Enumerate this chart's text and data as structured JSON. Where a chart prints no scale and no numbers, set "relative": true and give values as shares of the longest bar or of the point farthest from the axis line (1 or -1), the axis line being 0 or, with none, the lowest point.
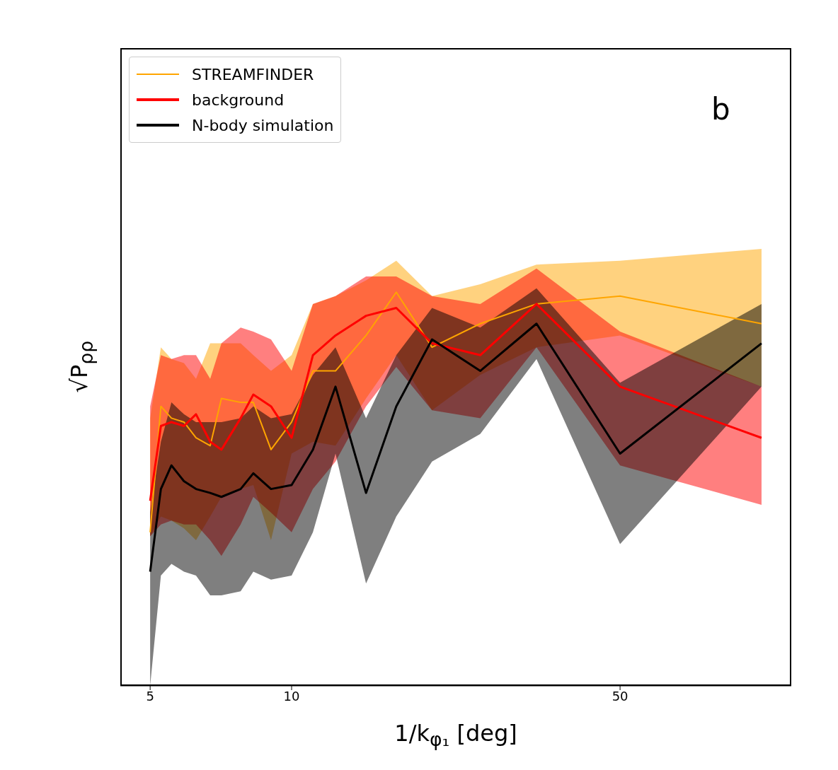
{
  "chart_data": {
    "type": "line",
    "relative": true,
    "xlabel": "1/k$_{φ₁}$ [deg]",
    "ylabel": "√P$_{ρρ}$",
    "annotations": [
      "b"
    ],
    "log": "x",
    "xlim": [
      4.32,
      115.7
    ],
    "xticks": [
      5,
      10,
      50
    ],
    "legend": "top left",
    "marker": "none",
    "line_style": "solid",
    "x": [
      5,
      5.27,
      5.55,
      5.9,
      6.26,
      6.71,
      7.09,
      7.79,
      8.29,
      9.04,
      10,
      11.1,
      12.4,
      14.4,
      16.7,
      19.9,
      25.2,
      33.2,
      50,
      100
    ],
    "series": [
      {
        "name": "STREAMFINDER",
        "color": "#ffa500",
        "values": [
          0.39,
          0.71,
          0.68,
          0.67,
          0.63,
          0.61,
          0.73,
          0.72,
          0.72,
          0.6,
          0.67,
          0.8,
          0.8,
          0.89,
          1.0,
          0.86,
          0.92,
          0.97,
          0.99,
          0.92
        ],
        "lower": [
          0.38,
          0.43,
          0.42,
          0.4,
          0.37,
          0.43,
          0.48,
          0.5,
          0.51,
          0.37,
          0.59,
          0.62,
          0.61,
          0.73,
          0.84,
          0.7,
          0.79,
          0.86,
          0.89,
          0.76
        ],
        "upper": [
          0.68,
          0.86,
          0.83,
          0.82,
          0.78,
          0.87,
          0.87,
          0.87,
          0.84,
          0.8,
          0.84,
          0.97,
          0.99,
          1.03,
          1.08,
          0.99,
          1.02,
          1.07,
          1.08,
          1.11
        ]
      },
      {
        "name": "background",
        "color": "#ff0000",
        "values": [
          0.47,
          0.66,
          0.67,
          0.66,
          0.69,
          0.62,
          0.6,
          0.68,
          0.74,
          0.71,
          0.63,
          0.84,
          0.89,
          0.94,
          0.96,
          0.87,
          0.84,
          0.97,
          0.76,
          0.63
        ],
        "lower": [
          0.38,
          0.41,
          0.42,
          0.41,
          0.41,
          0.37,
          0.33,
          0.41,
          0.48,
          0.44,
          0.39,
          0.5,
          0.57,
          0.71,
          0.81,
          0.7,
          0.68,
          0.86,
          0.56,
          0.46
        ],
        "upper": [
          0.71,
          0.84,
          0.83,
          0.84,
          0.84,
          0.78,
          0.87,
          0.91,
          0.9,
          0.88,
          0.8,
          0.97,
          0.99,
          1.04,
          1.04,
          0.99,
          0.97,
          1.06,
          0.9,
          0.76
        ]
      },
      {
        "name": "N-body simulation",
        "color": "#000000",
        "values": [
          0.29,
          0.5,
          0.56,
          0.52,
          0.5,
          0.49,
          0.48,
          0.5,
          0.54,
          0.5,
          0.51,
          0.6,
          0.76,
          0.49,
          0.71,
          0.88,
          0.8,
          0.92,
          0.59,
          0.87
        ],
        "lower": [
          0.0,
          0.28,
          0.31,
          0.29,
          0.28,
          0.23,
          0.23,
          0.24,
          0.29,
          0.27,
          0.28,
          0.39,
          0.59,
          0.26,
          0.43,
          0.57,
          0.64,
          0.83,
          0.36,
          0.76
        ],
        "upper": [
          0.44,
          0.62,
          0.72,
          0.69,
          0.67,
          0.67,
          0.67,
          0.68,
          0.71,
          0.68,
          0.69,
          0.79,
          0.86,
          0.68,
          0.84,
          0.96,
          0.91,
          1.01,
          0.77,
          0.97
        ]
      }
    ]
  }
}
